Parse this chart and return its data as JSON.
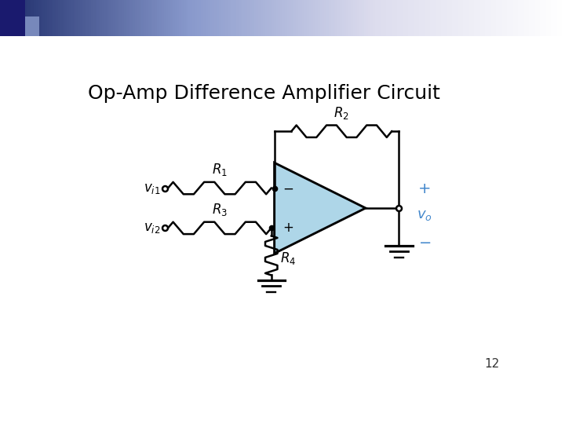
{
  "title": "Op-Amp Difference Amplifier Circuit",
  "slide_number": "12",
  "bg_color": "#ffffff",
  "title_color": "#000000",
  "circuit_color": "#000000",
  "opamp_fill": "#aed6e8",
  "opamp_stroke": "#000000",
  "output_label_color": "#4488cc",
  "figsize": [
    7.2,
    5.4
  ],
  "dpi": 100,
  "header_left_color": "#1a1a6e",
  "header_right_color": "#ffffff",
  "header_dark_sq": "#1a1a6e"
}
